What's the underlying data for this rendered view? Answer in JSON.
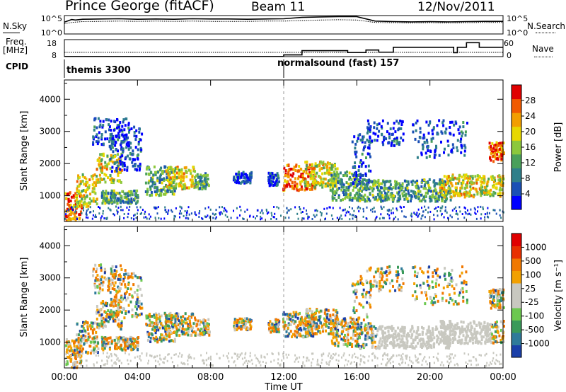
{
  "header": {
    "station": "Prince George (fitACF)",
    "beam": "Beam 11",
    "date": "12/Nov/2011"
  },
  "side_labels": {
    "nsky": "N.Sky",
    "freq": "Freq.",
    "freq_unit": "[MHz]",
    "cpid": "CPID",
    "nsearch": "N.Search",
    "nave": "Nave"
  },
  "cpid_labels": {
    "first": "themis 3300",
    "second": "normalsound (fast) 157"
  },
  "chart_data": [
    {
      "type": "line",
      "name": "noise",
      "yticks_left": [
        "10^5",
        "10^0"
      ],
      "yticks_right": [
        "10^5",
        "10^0"
      ],
      "x": [
        0,
        0.4,
        0.6,
        1.0,
        2.0,
        3.0,
        4.0,
        5.0,
        6.0,
        7.0,
        8.0,
        9.0,
        10.0,
        11.0,
        12.0,
        13.0,
        14.0,
        15.0,
        16.0,
        17.0,
        18.0,
        19.0,
        20.0,
        21.0,
        22.0,
        23.0,
        24.0
      ],
      "sky": [
        4.5,
        5.5,
        5.3,
        5.6,
        5.7,
        5.8,
        5.6,
        5.7,
        5.6,
        5.8,
        5.7,
        5.7,
        5.6,
        5.7,
        5.8,
        6.3,
        6.5,
        6.6,
        6.6,
        4.9,
        4.7,
        4.6,
        4.7,
        4.6,
        4.7,
        4.8,
        4.8
      ],
      "search": [
        3.9,
        4.4,
        4.5,
        4.7,
        4.8,
        4.9,
        4.8,
        4.9,
        4.8,
        4.9,
        4.8,
        4.8,
        4.8,
        4.9,
        4.9,
        5.1,
        5.3,
        5.4,
        5.3,
        4.4,
        4.3,
        4.2,
        4.3,
        4.2,
        4.3,
        4.4,
        4.4
      ]
    },
    {
      "type": "line",
      "name": "frequency",
      "yticks_left": [
        "18",
        "8"
      ],
      "yticks_right": [
        "60",
        "0"
      ],
      "freq_steps": [
        [
          0,
          8.1
        ],
        [
          12.0,
          9.0
        ],
        [
          13.0,
          11.5
        ],
        [
          15.5,
          10.4
        ],
        [
          16.5,
          11.9
        ],
        [
          17.2,
          10.6
        ],
        [
          18.0,
          13.5
        ],
        [
          21.3,
          10.3
        ],
        [
          21.5,
          13.5
        ],
        [
          22.0,
          16.2
        ],
        [
          22.7,
          13.5
        ],
        [
          24.0,
          13.5
        ]
      ],
      "nave_level": 10.5
    },
    {
      "type": "heatmap",
      "name": "power",
      "ylabel": "Slant Range [km]",
      "yticks": [
        1000,
        2000,
        3000,
        4000
      ],
      "ylim": [
        200,
        4600
      ],
      "colorbar_label": "Power [dB]",
      "colorbar_ticks": [
        "28",
        "24",
        "20",
        "16",
        "12",
        "8",
        "4"
      ],
      "colors": [
        "#0000ff",
        "#1a4fb5",
        "#2f7f8a",
        "#4aa05a",
        "#8cc83c",
        "#e8d800",
        "#f29e00",
        "#f05a00",
        "#e00000"
      ]
    },
    {
      "type": "heatmap",
      "name": "velocity",
      "ylabel": "Slant Range [km]",
      "yticks": [
        1000,
        2000,
        3000,
        4000
      ],
      "ylim": [
        200,
        4600
      ],
      "colorbar_label": "Velocity [m s⁻¹]",
      "colorbar_ticks": [
        "1000",
        "500",
        "100",
        "25",
        "-25",
        "-100",
        "-500",
        "-1000"
      ],
      "colors": [
        "#1a3fa8",
        "#2f7a9a",
        "#3a9a5a",
        "#6cc850",
        "#c8c8c0",
        "#c8c8c0",
        "#f2a000",
        "#f07800",
        "#e83000",
        "#e00000"
      ]
    }
  ],
  "x_axis": {
    "label": "Time UT",
    "ticks": [
      "00:00",
      "04:00",
      "08:00",
      "12:00",
      "16:00",
      "20:00",
      "00:00"
    ]
  }
}
